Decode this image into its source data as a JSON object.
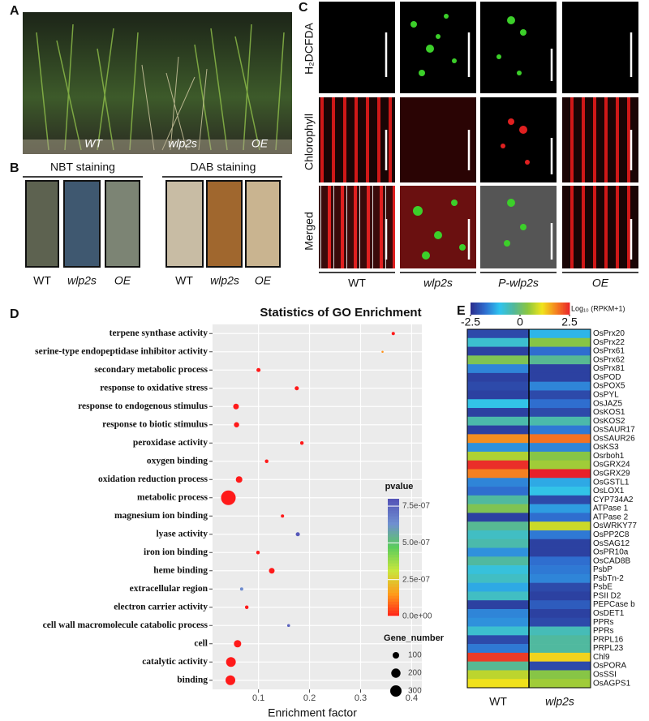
{
  "panel_labels": [
    "A",
    "B",
    "C",
    "D",
    "E"
  ],
  "panel_a": {
    "labels": [
      "WT",
      "wlp2s",
      "OE"
    ]
  },
  "panel_b": {
    "titles": [
      "NBT staining",
      "DAB staining"
    ],
    "labels": [
      "WT",
      "wlp2s",
      "OE",
      "WT",
      "wlp2s",
      "OE"
    ]
  },
  "panel_c": {
    "rows": [
      "H₂DCFDA",
      "Chlorophyll",
      "Merged"
    ],
    "columns": [
      "WT",
      "wlp2s",
      "P-wlp2s",
      "OE"
    ]
  },
  "chart_data": [
    {
      "type": "bubble",
      "title": "Statistics of GO Enrichment",
      "x_label": "Enrichment factor",
      "categories": [
        "terpene synthase activity",
        "serine-type endopeptidase inhibitor activity",
        "secondary metabolic process",
        "response to oxidative stress",
        "response to endogenous stimulus",
        "response to biotic stimulus",
        "peroxidase activity",
        "oxygen binding",
        "oxidation reduction process",
        "metabolic process",
        "magnesium ion binding",
        "lyase activity",
        "iron ion binding",
        "heme binding",
        "extracellular region",
        "electron carrier activity",
        "cell wall macromolecule catabolic process",
        "cell",
        "catalytic activity",
        "binding"
      ],
      "values": [
        0.364,
        0.343,
        0.1,
        0.175,
        0.056,
        0.057,
        0.185,
        0.116,
        0.062,
        0.041,
        0.147,
        0.177,
        0.099,
        0.126,
        0.067,
        0.077,
        0.159,
        0.059,
        0.046,
        0.045
      ],
      "sizes": [
        25,
        10,
        40,
        40,
        75,
        65,
        30,
        30,
        100,
        500,
        25,
        40,
        30,
        75,
        25,
        30,
        20,
        125,
        220,
        220
      ],
      "pvalues": [
        0,
        1.5e-07,
        0,
        0,
        0,
        0,
        0,
        0,
        0,
        0,
        0,
        7.9e-07,
        0,
        0,
        6.5e-07,
        0,
        7.6e-07,
        0,
        0,
        0
      ],
      "xlim": [
        0.01,
        0.42
      ],
      "xticks": [
        0.1,
        0.2,
        0.3,
        0.4
      ],
      "grid": true,
      "color_label": "pvalue",
      "clim": [
        0,
        8e-07
      ],
      "cticks": [
        {
          "value": 0,
          "label": "0.0e+00"
        },
        {
          "value": 2.5e-07,
          "label": "2.5e-07"
        },
        {
          "value": 5e-07,
          "label": "5.0e-07"
        },
        {
          "value": 7.5e-07,
          "label": "7.5e-07"
        }
      ],
      "colors": [
        "#ff1a1a",
        "#ff9a1a",
        "#c8e63c",
        "#5ccc5c",
        "#6f8fd0",
        "#5555b8"
      ],
      "size_label": "Gene_number",
      "size_ticks": [
        100,
        200,
        300
      ]
    },
    {
      "type": "heatmap",
      "colorbar_label": "Log₁₀ (RPKM+1)",
      "columns": [
        "WT",
        "wlp2s"
      ],
      "rows": [
        "OsPrx20",
        "OsPrx22",
        "OsPrx61",
        "OsPrx62",
        "OsPrx81",
        "OsPOD",
        "OsPOX5",
        "OsPYL",
        "OsJAZ5",
        "OsKOS1",
        "OsKOS2",
        "OsSAUR17",
        "OsSAUR26",
        "OsKS3",
        "Osrboh1",
        "OsGRX24",
        "OsGRX29",
        "OsGSTL1",
        "OsLOX1",
        "CYP734A2",
        "ATPase 1",
        "ATPase 2",
        "OsWRKY77",
        "OsPP2C8",
        "OsSAG12",
        "OsPR10a",
        "OsCAD8B",
        "PsbP",
        "PsbTn-2",
        "PsbE",
        "PSII D2",
        "PEPCase b",
        "OsDET1",
        "PPRs",
        "PPRs",
        "PRPL16",
        "PRPL23",
        "Chl9",
        "OsPORA",
        "OsSSI",
        "OsAGPS1"
      ],
      "values": [
        [
          -2.2,
          -1.2
        ],
        [
          -0.8,
          0.3
        ],
        [
          -2.3,
          -1.8
        ],
        [
          0.2,
          -0.3
        ],
        [
          -1.6,
          -2.3
        ],
        [
          -2.3,
          -2.3
        ],
        [
          -2.2,
          -1.6
        ],
        [
          -2.3,
          -2.2
        ],
        [
          -1.0,
          -1.8
        ],
        [
          -2.3,
          -2.2
        ],
        [
          -0.5,
          -0.5
        ],
        [
          -2.3,
          -1.7
        ],
        [
          1.7,
          1.9
        ],
        [
          -1.5,
          -1.6
        ],
        [
          0.6,
          0.3
        ],
        [
          2.4,
          0.5
        ],
        [
          1.8,
          2.5
        ],
        [
          -1.6,
          -1.3
        ],
        [
          -1.8,
          -1.0
        ],
        [
          -0.4,
          -2.2
        ],
        [
          0.2,
          -1.4
        ],
        [
          -2.3,
          -1.8
        ],
        [
          -0.3,
          0.8
        ],
        [
          -0.7,
          -1.7
        ],
        [
          -0.5,
          -2.3
        ],
        [
          -1.5,
          -2.3
        ],
        [
          -0.4,
          -1.8
        ],
        [
          -0.9,
          -1.7
        ],
        [
          -0.7,
          -1.6
        ],
        [
          -1.3,
          -2.2
        ],
        [
          -0.7,
          -2.3
        ],
        [
          -2.3,
          -2.0
        ],
        [
          -1.6,
          -2.3
        ],
        [
          -1.5,
          -2.2
        ],
        [
          -0.8,
          -0.6
        ],
        [
          -2.2,
          -0.4
        ],
        [
          -1.7,
          -0.4
        ],
        [
          2.3,
          1.2
        ],
        [
          -0.3,
          -2.2
        ],
        [
          0.7,
          0.3
        ],
        [
          1.1,
          0.5
        ]
      ],
      "zlim": [
        -2.5,
        2.5
      ],
      "zticks": [
        -2.5,
        0,
        2.5
      ],
      "colors": [
        "#2b2f8f",
        "#2f6fd0",
        "#2ec4ef",
        "#52b89a",
        "#8cc63f",
        "#f0e51c",
        "#f58220",
        "#e8202a"
      ]
    }
  ]
}
